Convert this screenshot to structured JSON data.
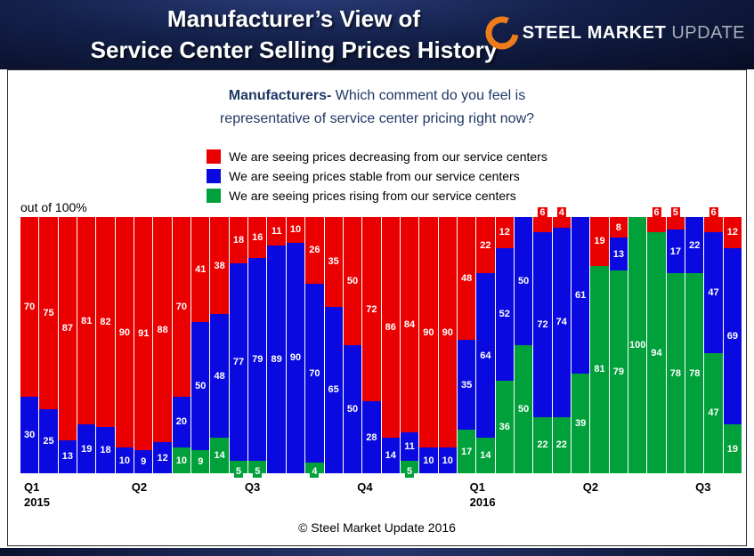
{
  "header": {
    "title_line1": "Manufacturer’s View of",
    "title_line2": "Service Center Selling Prices History",
    "logo": {
      "word1": "STEEL",
      "word2": "MARKET",
      "word3": "UPDATE",
      "ring_color": "#ef7c1a"
    }
  },
  "question": {
    "lead": "Manufacturers-",
    "line1_rest": " Which comment do you feel is",
    "line2": "representative of service center pricing right now?"
  },
  "legend": [
    {
      "label": "We are seeing prices decreasing from our service centers",
      "color": "#ea0000"
    },
    {
      "label": "We are seeing prices stable from our service centers",
      "color": "#0a0ae0"
    },
    {
      "label": "We are seeing prices rising from our service centers",
      "color": "#00a13a"
    }
  ],
  "axis_note": "out of 100%",
  "footer": "© Steel Market Update 2016",
  "colors": {
    "red": "#ea0000",
    "blue": "#0a0ae0",
    "green": "#00a13a",
    "navy": "#13204a",
    "question_text": "#1f3864"
  },
  "chart_data": {
    "type": "bar",
    "subtype": "stacked-100-percent",
    "title": "Manufacturers- Which comment do you feel is representative of service center pricing right now?",
    "ylabel": "out of 100%",
    "ylim": [
      0,
      100
    ],
    "grid": false,
    "legend_position": "top",
    "stack_order_top_to_bottom": [
      "decreasing",
      "stable",
      "rising"
    ],
    "series": [
      {
        "key": "decreasing",
        "name": "We are seeing prices decreasing from our service centers",
        "color": "#ea0000",
        "values": [
          70,
          75,
          87,
          81,
          82,
          90,
          91,
          88,
          70,
          41,
          38,
          18,
          16,
          11,
          10,
          26,
          35,
          50,
          72,
          86,
          84,
          90,
          90,
          48,
          22,
          12,
          0,
          6,
          4,
          0,
          19,
          8,
          0,
          6,
          5,
          0,
          6,
          12
        ]
      },
      {
        "key": "stable",
        "name": "We are seeing prices stable from our service centers",
        "color": "#0a0ae0",
        "values": [
          30,
          25,
          13,
          19,
          18,
          10,
          9,
          12,
          20,
          50,
          48,
          77,
          79,
          89,
          90,
          70,
          65,
          50,
          28,
          14,
          11,
          10,
          10,
          35,
          64,
          52,
          50,
          72,
          74,
          61,
          0,
          13,
          0,
          0,
          17,
          22,
          47,
          69
        ]
      },
      {
        "key": "rising",
        "name": "We are seeing prices rising from our service centers",
        "color": "#00a13a",
        "values": [
          0,
          0,
          0,
          0,
          0,
          0,
          0,
          0,
          10,
          9,
          14,
          5,
          5,
          0,
          0,
          4,
          0,
          0,
          0,
          0,
          5,
          0,
          0,
          17,
          14,
          36,
          50,
          22,
          22,
          39,
          81,
          79,
          100,
          94,
          78,
          78,
          47,
          19
        ]
      }
    ],
    "x_ticks": [
      {
        "label": "Q1",
        "year": "2015",
        "left": 0.5
      },
      {
        "label": "Q2",
        "left": 15.4
      },
      {
        "label": "Q3",
        "left": 31.1
      },
      {
        "label": "Q4",
        "left": 46.7
      },
      {
        "label": "Q1",
        "year": "2016",
        "left": 62.3
      },
      {
        "label": "Q2",
        "left": 78.0
      },
      {
        "label": "Q3",
        "left": 93.6
      }
    ]
  }
}
